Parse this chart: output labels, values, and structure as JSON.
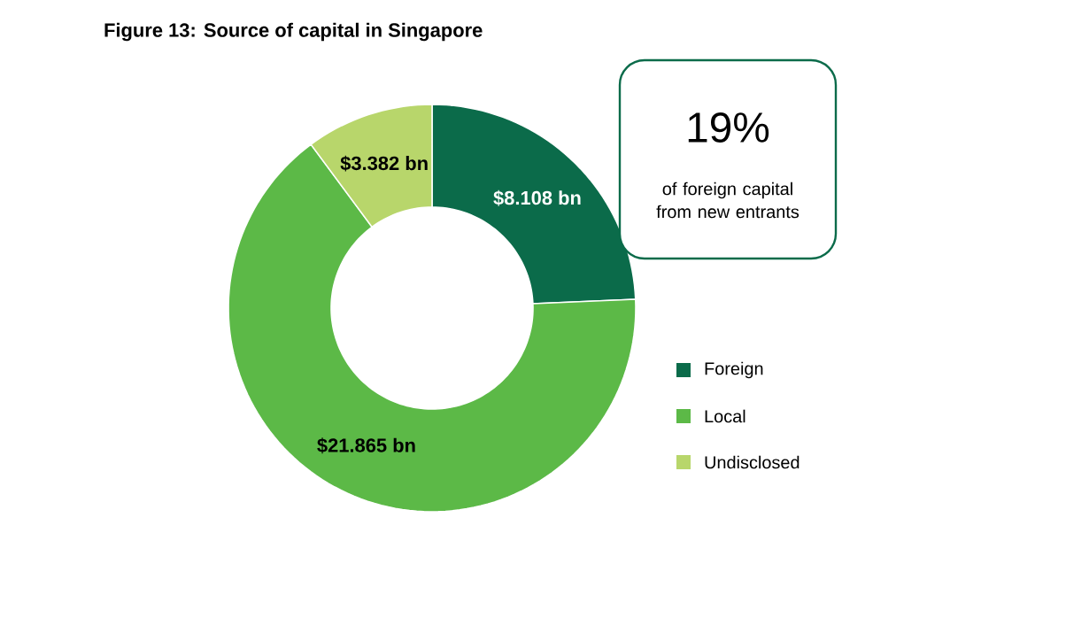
{
  "chart_data": {
    "type": "donut",
    "title": "Figure 13: Source of capital in Singapore",
    "categories": [
      "Foreign",
      "Local",
      "Undisclosed"
    ],
    "values": [
      8.108,
      21.865,
      3.382
    ],
    "value_labels": [
      "$8.108 bn",
      "$21.865 bn",
      "$3.382 bn"
    ],
    "colors": [
      "#0b6b4a",
      "#5cb947",
      "#b8d66b"
    ],
    "annotations": [
      "19%",
      "of foreign capital from new entrants"
    ],
    "legend": "right"
  }
}
